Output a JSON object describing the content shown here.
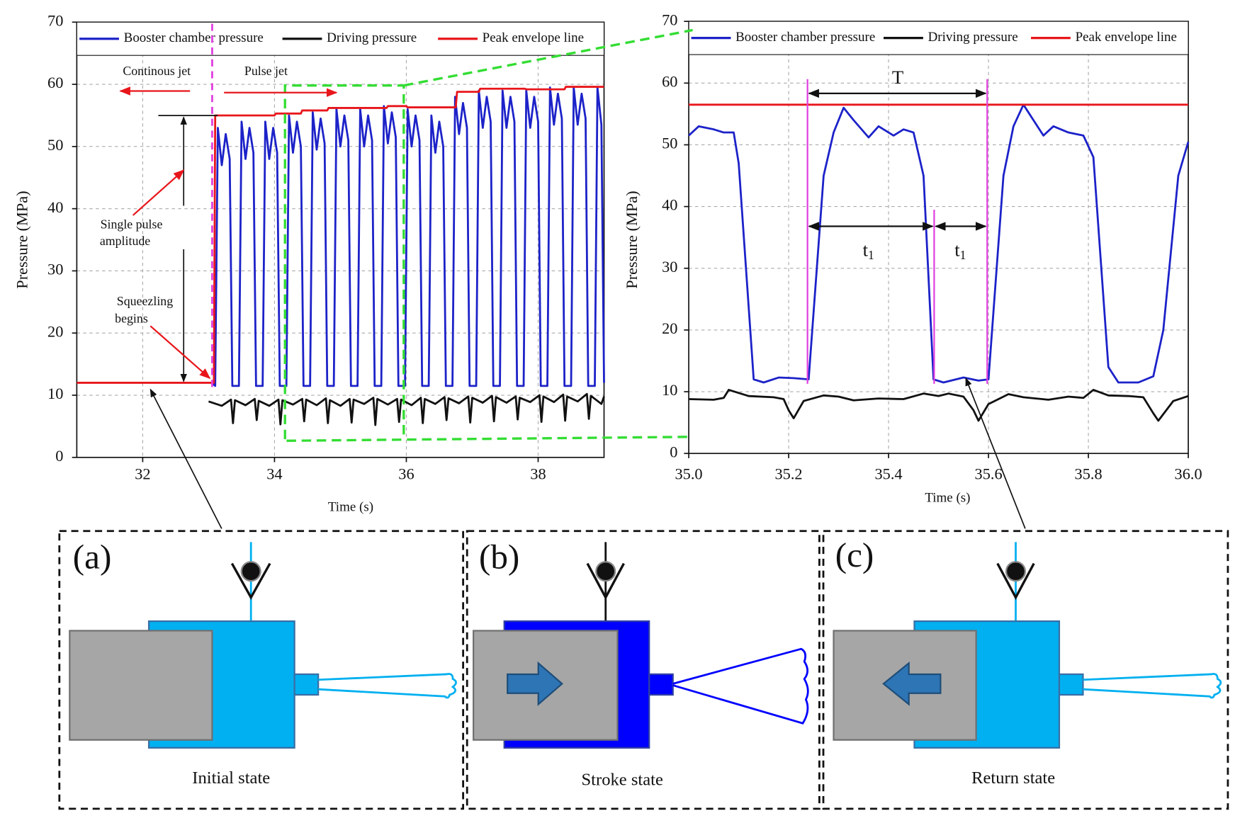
{
  "chart_data": [
    {
      "type": "line",
      "xlabel": "Time (s)",
      "ylabel": "Pressure (MPa)",
      "xlim": [
        31,
        39
      ],
      "ylim": [
        0,
        70
      ],
      "xticks": [
        32,
        34,
        36,
        38
      ],
      "yticks": [
        0,
        10,
        20,
        30,
        40,
        50,
        60,
        70
      ],
      "grid": true,
      "annotations": [
        "Continous jet",
        "Pulse jet",
        "Single pulse",
        "amplitude",
        "Squeezling",
        "begins"
      ],
      "series": [
        {
          "name": "Booster chamber pressure",
          "color": "#1c22c8",
          "x": [
            33.05,
            33.1,
            33.14,
            33.2,
            33.26,
            33.32,
            33.36,
            33.46,
            33.5,
            33.56,
            33.62,
            33.68,
            33.72,
            33.82,
            33.86,
            33.92,
            33.98,
            34.04,
            34.08,
            34.18,
            34.22,
            34.28,
            34.34,
            34.4,
            34.44,
            34.54,
            34.58,
            34.64,
            34.7,
            34.76,
            34.8,
            34.9,
            34.94,
            35,
            35.06,
            35.12,
            35.16,
            35.26,
            35.3,
            35.36,
            35.42,
            35.48,
            35.52,
            35.62,
            35.66,
            35.72,
            35.78,
            35.84,
            35.88,
            35.98,
            36.02,
            36.08,
            36.14,
            36.2,
            36.24,
            36.34,
            36.38,
            36.44,
            36.5,
            36.56,
            36.6,
            36.7,
            36.74,
            36.8,
            36.86,
            36.92,
            36.96,
            37.06,
            37.1,
            37.16,
            37.22,
            37.28,
            37.32,
            37.42,
            37.46,
            37.52,
            37.58,
            37.64,
            37.68,
            37.78,
            37.82,
            37.88,
            37.94,
            38,
            38.04,
            38.14,
            38.18,
            38.24,
            38.3,
            38.36,
            38.4,
            38.5,
            38.54,
            38.6,
            38.66,
            38.72,
            38.76,
            38.86,
            38.9,
            38.96,
            39
          ],
          "values": [
            12,
            11.5,
            53,
            47,
            52,
            48,
            11.5,
            11.5,
            54,
            48,
            53,
            49,
            11.5,
            11.5,
            54,
            48,
            53,
            49,
            11.5,
            11.5,
            55,
            49,
            54,
            50,
            11.5,
            11.5,
            55.5,
            49.5,
            54.5,
            50.5,
            11.5,
            11.5,
            56,
            50,
            55,
            51,
            11.5,
            11.5,
            56,
            50,
            55,
            51,
            11.5,
            11.5,
            56.5,
            50.5,
            55.5,
            51.5,
            11.5,
            11.5,
            56,
            50,
            55,
            51,
            11.5,
            11.5,
            55,
            49,
            54,
            50,
            11.5,
            11.5,
            58,
            52,
            57,
            53,
            11.5,
            11.5,
            59,
            53,
            58,
            54,
            11.5,
            11.5,
            59,
            53,
            58,
            54,
            11.5,
            11.5,
            59,
            53,
            58,
            54,
            11.5,
            11.5,
            59.5,
            53.5,
            58.5,
            54.5,
            11.5,
            11.5,
            59.5,
            53.5,
            58.5,
            54.5,
            11.5,
            11.5,
            59.5,
            53.5,
            12
          ]
        },
        {
          "name": "Driving pressure",
          "color": "#111111",
          "x": [
            33,
            33.2,
            33.34,
            33.37,
            33.4,
            33.56,
            33.7,
            33.73,
            33.76,
            33.92,
            34.06,
            34.09,
            34.12,
            34.28,
            34.42,
            34.45,
            34.48,
            34.64,
            34.78,
            34.81,
            34.84,
            35,
            35.14,
            35.17,
            35.2,
            35.36,
            35.5,
            35.53,
            35.56,
            35.72,
            35.86,
            35.89,
            35.92,
            36.08,
            36.22,
            36.25,
            36.28,
            36.44,
            36.58,
            36.61,
            36.64,
            36.8,
            36.94,
            36.97,
            37,
            37.16,
            37.3,
            37.33,
            37.36,
            37.52,
            37.66,
            37.69,
            37.72,
            37.88,
            38.02,
            38.05,
            38.08,
            38.24,
            38.38,
            38.41,
            38.44,
            38.6,
            38.74,
            38.77,
            38.8,
            38.96,
            39
          ],
          "values": [
            9,
            8.3,
            9.3,
            5.5,
            9.2,
            8.4,
            9.4,
            6,
            9.1,
            8.3,
            9.3,
            5.3,
            9.2,
            8.5,
            9.4,
            5.8,
            9.3,
            8.4,
            9.5,
            5.5,
            9.2,
            8.3,
            9.4,
            5.6,
            9.3,
            8.6,
            9.6,
            5.2,
            9.4,
            8.5,
            9.4,
            5.7,
            9.3,
            8.4,
            9.6,
            5.5,
            9.4,
            8.6,
            9.7,
            6,
            9.5,
            8.7,
            9.8,
            5.6,
            9.6,
            8.8,
            9.9,
            5.8,
            9.7,
            8.8,
            9.8,
            6.1,
            9.6,
            8.9,
            10,
            5.7,
            9.8,
            8.9,
            10.1,
            5.9,
            9.8,
            9,
            10.2,
            6.2,
            9.9,
            8.6,
            9.8
          ]
        },
        {
          "name": "Peak envelope line",
          "color": "#e8161b",
          "x": [
            31,
            33.08,
            33.1,
            34,
            34.02,
            34.4,
            34.42,
            34.8,
            34.82,
            35.7,
            35.72,
            36,
            36.02,
            36.75,
            36.77,
            37.1,
            37.12,
            37.8,
            37.82,
            38.4,
            38.42,
            39
          ],
          "values": [
            12,
            12,
            55,
            55,
            55.3,
            55.3,
            55.8,
            55.8,
            56.2,
            56.2,
            56.5,
            56.5,
            56.3,
            56.3,
            58.8,
            58.8,
            59.3,
            59.3,
            59.2,
            59.2,
            59.6,
            59.6
          ]
        }
      ]
    },
    {
      "type": "line",
      "xlabel": "Time (s)",
      "ylabel": "Pressure (MPa)",
      "xlim": [
        35,
        36
      ],
      "ylim": [
        0,
        70
      ],
      "xticks": [
        {
          "value": 35,
          "label": "35.0"
        },
        35.2,
        35.4,
        35.6,
        35.8,
        {
          "value": 36,
          "label": "36.0"
        }
      ],
      "yticks": [
        0,
        10,
        20,
        30,
        40,
        50,
        60,
        70
      ],
      "grid": true,
      "annotations": [
        "T",
        {
          "text": "t",
          "subscript": "1"
        },
        {
          "text": "t",
          "subscript": "1"
        }
      ],
      "series": [
        {
          "name": "Booster chamber pressure",
          "color": "#1c22c8",
          "x": [
            35,
            35.02,
            35.05,
            35.07,
            35.09,
            35.1,
            35.13,
            35.15,
            35.18,
            35.21,
            35.24,
            35.27,
            35.29,
            35.31,
            35.33,
            35.36,
            35.38,
            35.41,
            35.43,
            35.45,
            35.47,
            35.49,
            35.51,
            35.55,
            35.58,
            35.6,
            35.63,
            35.65,
            35.67,
            35.69,
            35.71,
            35.73,
            35.76,
            35.79,
            35.81,
            35.84,
            35.86,
            35.9,
            35.93,
            35.95,
            35.98,
            36
          ],
          "values": [
            51.5,
            53,
            52.5,
            52,
            52,
            47,
            12,
            11.5,
            12.3,
            12.2,
            12,
            45,
            52,
            56,
            54,
            51.2,
            53,
            51.5,
            52.5,
            52,
            45,
            12,
            11.5,
            12.3,
            11.8,
            12,
            45,
            53,
            56.5,
            54,
            51.5,
            53,
            52,
            51.5,
            48,
            14,
            11.5,
            11.5,
            12.5,
            20,
            45,
            50.5
          ]
        },
        {
          "name": "Driving pressure",
          "color": "#111111",
          "x": [
            35,
            35.05,
            35.07,
            35.08,
            35.12,
            35.17,
            35.19,
            35.2,
            35.21,
            35.23,
            35.27,
            35.3,
            35.33,
            35.38,
            35.43,
            35.47,
            35.5,
            35.52,
            35.55,
            35.57,
            35.58,
            35.6,
            35.64,
            35.67,
            35.72,
            35.76,
            35.79,
            35.81,
            35.84,
            35.88,
            35.91,
            35.93,
            35.94,
            35.97,
            36
          ],
          "values": [
            8.8,
            8.7,
            9,
            10.3,
            9.3,
            9.1,
            8.8,
            7,
            5.7,
            8.5,
            9.4,
            9.2,
            8.6,
            8.9,
            8.8,
            9.7,
            9.3,
            9.7,
            9.2,
            7,
            5.3,
            8,
            9.6,
            9.1,
            8.7,
            9.2,
            9,
            10.3,
            9.4,
            9.3,
            9.1,
            6.5,
            5.3,
            8.5,
            9.3
          ]
        },
        {
          "name": "Peak envelope line",
          "color": "#e8161b",
          "x": [
            35,
            36
          ],
          "values": [
            56.5,
            56.5
          ]
        }
      ]
    }
  ],
  "panels": [
    {
      "letter": "(a)",
      "caption": "Initial state"
    },
    {
      "letter": "(b)",
      "caption": "Stroke state"
    },
    {
      "letter": "(c)",
      "caption": "Return state"
    }
  ]
}
